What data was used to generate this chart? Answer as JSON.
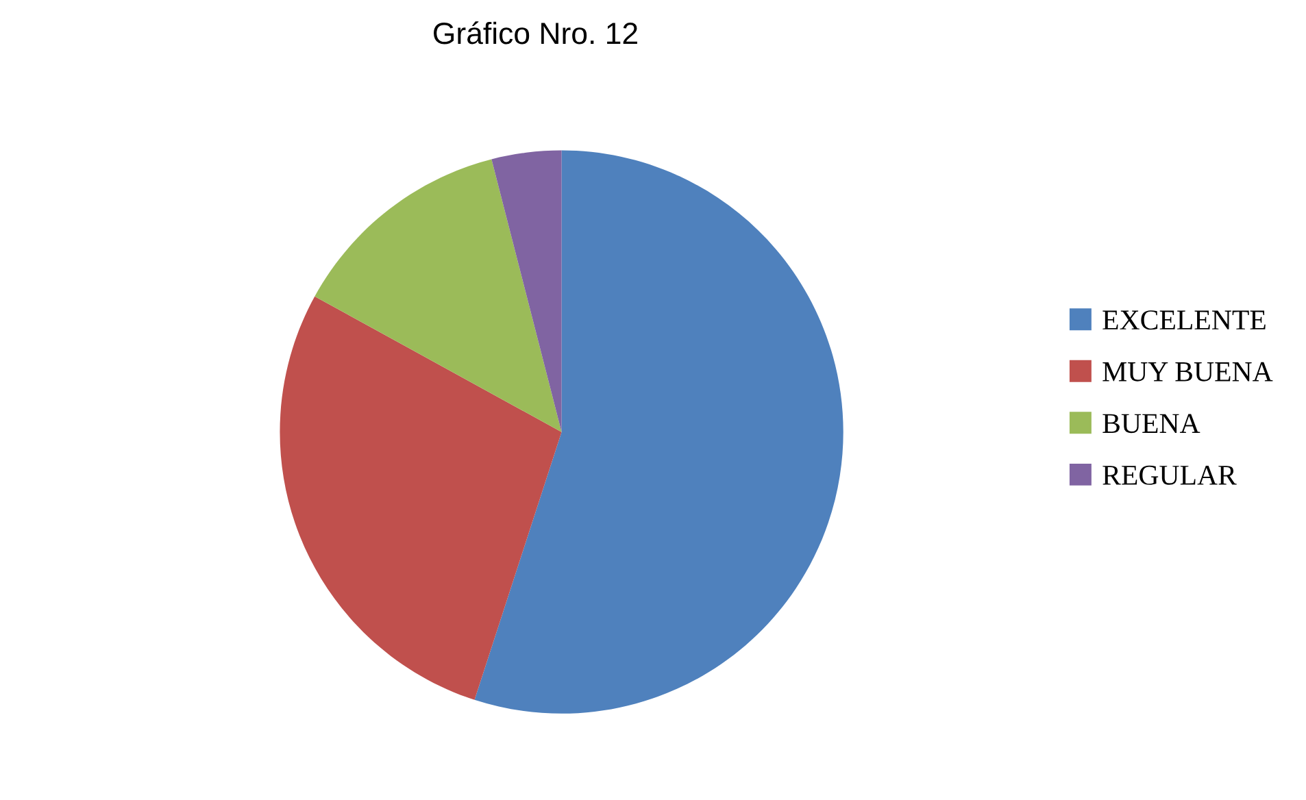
{
  "chart_data": {
    "type": "pie",
    "title": "Gráfico Nro. 12",
    "categories": [
      "EXCELENTE",
      "MUY BUENA",
      "BUENA",
      "REGULAR"
    ],
    "values": [
      55,
      28,
      13,
      4
    ],
    "colors": [
      "#4f81bd",
      "#c0504d",
      "#9bbb59",
      "#8064a2"
    ],
    "legend": "right"
  }
}
